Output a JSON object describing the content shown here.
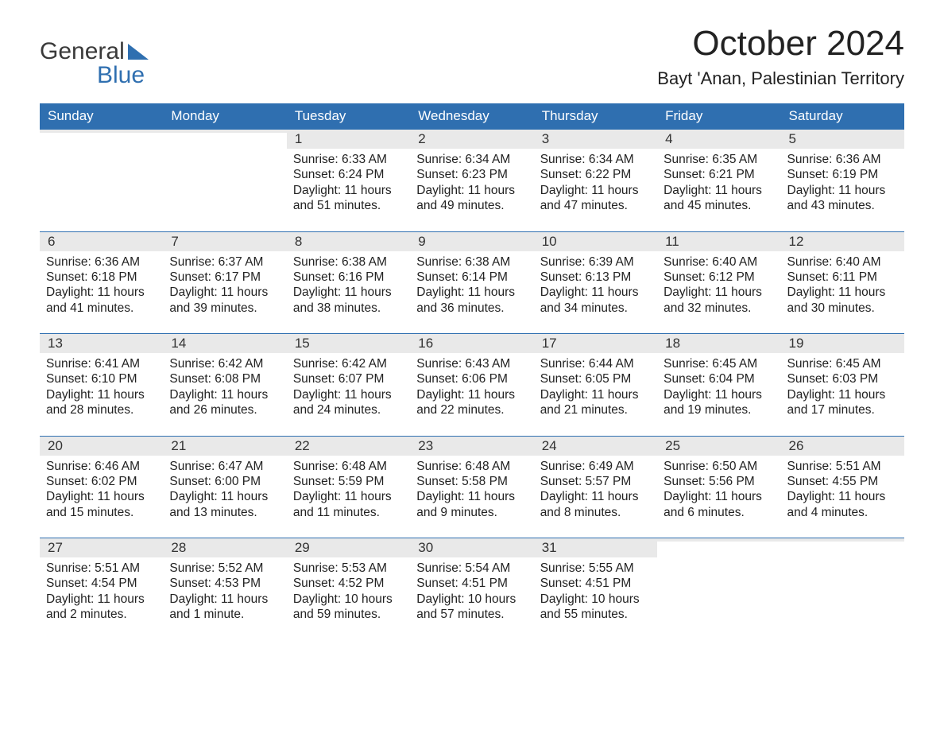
{
  "logo": {
    "line1": "General",
    "line2": "Blue"
  },
  "header": {
    "month_title": "October 2024",
    "location": "Bayt 'Anan, Palestinian Territory"
  },
  "colors": {
    "header_bg": "#2f6fb0",
    "header_text": "#ffffff",
    "daynum_bg": "#e9e9e9",
    "cell_border": "#2f6fb0",
    "page_bg": "#ffffff",
    "logo_gray": "#3a3a3a",
    "logo_blue": "#2f6fb0",
    "body_text": "#222222"
  },
  "typography": {
    "month_title_fontsize": 44,
    "location_fontsize": 22,
    "dayheader_fontsize": 17,
    "daynum_fontsize": 17,
    "dayinfo_fontsize": 15.5,
    "logo_fontsize": 30
  },
  "day_headers": [
    "Sunday",
    "Monday",
    "Tuesday",
    "Wednesday",
    "Thursday",
    "Friday",
    "Saturday"
  ],
  "weeks": [
    [
      {
        "empty": true
      },
      {
        "empty": true
      },
      {
        "day": "1",
        "sunrise": "Sunrise: 6:33 AM",
        "sunset": "Sunset: 6:24 PM",
        "daylight1": "Daylight: 11 hours",
        "daylight2": "and 51 minutes."
      },
      {
        "day": "2",
        "sunrise": "Sunrise: 6:34 AM",
        "sunset": "Sunset: 6:23 PM",
        "daylight1": "Daylight: 11 hours",
        "daylight2": "and 49 minutes."
      },
      {
        "day": "3",
        "sunrise": "Sunrise: 6:34 AM",
        "sunset": "Sunset: 6:22 PM",
        "daylight1": "Daylight: 11 hours",
        "daylight2": "and 47 minutes."
      },
      {
        "day": "4",
        "sunrise": "Sunrise: 6:35 AM",
        "sunset": "Sunset: 6:21 PM",
        "daylight1": "Daylight: 11 hours",
        "daylight2": "and 45 minutes."
      },
      {
        "day": "5",
        "sunrise": "Sunrise: 6:36 AM",
        "sunset": "Sunset: 6:19 PM",
        "daylight1": "Daylight: 11 hours",
        "daylight2": "and 43 minutes."
      }
    ],
    [
      {
        "day": "6",
        "sunrise": "Sunrise: 6:36 AM",
        "sunset": "Sunset: 6:18 PM",
        "daylight1": "Daylight: 11 hours",
        "daylight2": "and 41 minutes."
      },
      {
        "day": "7",
        "sunrise": "Sunrise: 6:37 AM",
        "sunset": "Sunset: 6:17 PM",
        "daylight1": "Daylight: 11 hours",
        "daylight2": "and 39 minutes."
      },
      {
        "day": "8",
        "sunrise": "Sunrise: 6:38 AM",
        "sunset": "Sunset: 6:16 PM",
        "daylight1": "Daylight: 11 hours",
        "daylight2": "and 38 minutes."
      },
      {
        "day": "9",
        "sunrise": "Sunrise: 6:38 AM",
        "sunset": "Sunset: 6:14 PM",
        "daylight1": "Daylight: 11 hours",
        "daylight2": "and 36 minutes."
      },
      {
        "day": "10",
        "sunrise": "Sunrise: 6:39 AM",
        "sunset": "Sunset: 6:13 PM",
        "daylight1": "Daylight: 11 hours",
        "daylight2": "and 34 minutes."
      },
      {
        "day": "11",
        "sunrise": "Sunrise: 6:40 AM",
        "sunset": "Sunset: 6:12 PM",
        "daylight1": "Daylight: 11 hours",
        "daylight2": "and 32 minutes."
      },
      {
        "day": "12",
        "sunrise": "Sunrise: 6:40 AM",
        "sunset": "Sunset: 6:11 PM",
        "daylight1": "Daylight: 11 hours",
        "daylight2": "and 30 minutes."
      }
    ],
    [
      {
        "day": "13",
        "sunrise": "Sunrise: 6:41 AM",
        "sunset": "Sunset: 6:10 PM",
        "daylight1": "Daylight: 11 hours",
        "daylight2": "and 28 minutes."
      },
      {
        "day": "14",
        "sunrise": "Sunrise: 6:42 AM",
        "sunset": "Sunset: 6:08 PM",
        "daylight1": "Daylight: 11 hours",
        "daylight2": "and 26 minutes."
      },
      {
        "day": "15",
        "sunrise": "Sunrise: 6:42 AM",
        "sunset": "Sunset: 6:07 PM",
        "daylight1": "Daylight: 11 hours",
        "daylight2": "and 24 minutes."
      },
      {
        "day": "16",
        "sunrise": "Sunrise: 6:43 AM",
        "sunset": "Sunset: 6:06 PM",
        "daylight1": "Daylight: 11 hours",
        "daylight2": "and 22 minutes."
      },
      {
        "day": "17",
        "sunrise": "Sunrise: 6:44 AM",
        "sunset": "Sunset: 6:05 PM",
        "daylight1": "Daylight: 11 hours",
        "daylight2": "and 21 minutes."
      },
      {
        "day": "18",
        "sunrise": "Sunrise: 6:45 AM",
        "sunset": "Sunset: 6:04 PM",
        "daylight1": "Daylight: 11 hours",
        "daylight2": "and 19 minutes."
      },
      {
        "day": "19",
        "sunrise": "Sunrise: 6:45 AM",
        "sunset": "Sunset: 6:03 PM",
        "daylight1": "Daylight: 11 hours",
        "daylight2": "and 17 minutes."
      }
    ],
    [
      {
        "day": "20",
        "sunrise": "Sunrise: 6:46 AM",
        "sunset": "Sunset: 6:02 PM",
        "daylight1": "Daylight: 11 hours",
        "daylight2": "and 15 minutes."
      },
      {
        "day": "21",
        "sunrise": "Sunrise: 6:47 AM",
        "sunset": "Sunset: 6:00 PM",
        "daylight1": "Daylight: 11 hours",
        "daylight2": "and 13 minutes."
      },
      {
        "day": "22",
        "sunrise": "Sunrise: 6:48 AM",
        "sunset": "Sunset: 5:59 PM",
        "daylight1": "Daylight: 11 hours",
        "daylight2": "and 11 minutes."
      },
      {
        "day": "23",
        "sunrise": "Sunrise: 6:48 AM",
        "sunset": "Sunset: 5:58 PM",
        "daylight1": "Daylight: 11 hours",
        "daylight2": "and 9 minutes."
      },
      {
        "day": "24",
        "sunrise": "Sunrise: 6:49 AM",
        "sunset": "Sunset: 5:57 PM",
        "daylight1": "Daylight: 11 hours",
        "daylight2": "and 8 minutes."
      },
      {
        "day": "25",
        "sunrise": "Sunrise: 6:50 AM",
        "sunset": "Sunset: 5:56 PM",
        "daylight1": "Daylight: 11 hours",
        "daylight2": "and 6 minutes."
      },
      {
        "day": "26",
        "sunrise": "Sunrise: 5:51 AM",
        "sunset": "Sunset: 4:55 PM",
        "daylight1": "Daylight: 11 hours",
        "daylight2": "and 4 minutes."
      }
    ],
    [
      {
        "day": "27",
        "sunrise": "Sunrise: 5:51 AM",
        "sunset": "Sunset: 4:54 PM",
        "daylight1": "Daylight: 11 hours",
        "daylight2": "and 2 minutes."
      },
      {
        "day": "28",
        "sunrise": "Sunrise: 5:52 AM",
        "sunset": "Sunset: 4:53 PM",
        "daylight1": "Daylight: 11 hours",
        "daylight2": "and 1 minute."
      },
      {
        "day": "29",
        "sunrise": "Sunrise: 5:53 AM",
        "sunset": "Sunset: 4:52 PM",
        "daylight1": "Daylight: 10 hours",
        "daylight2": "and 59 minutes."
      },
      {
        "day": "30",
        "sunrise": "Sunrise: 5:54 AM",
        "sunset": "Sunset: 4:51 PM",
        "daylight1": "Daylight: 10 hours",
        "daylight2": "and 57 minutes."
      },
      {
        "day": "31",
        "sunrise": "Sunrise: 5:55 AM",
        "sunset": "Sunset: 4:51 PM",
        "daylight1": "Daylight: 10 hours",
        "daylight2": "and 55 minutes."
      },
      {
        "empty": true
      },
      {
        "empty": true
      }
    ]
  ]
}
